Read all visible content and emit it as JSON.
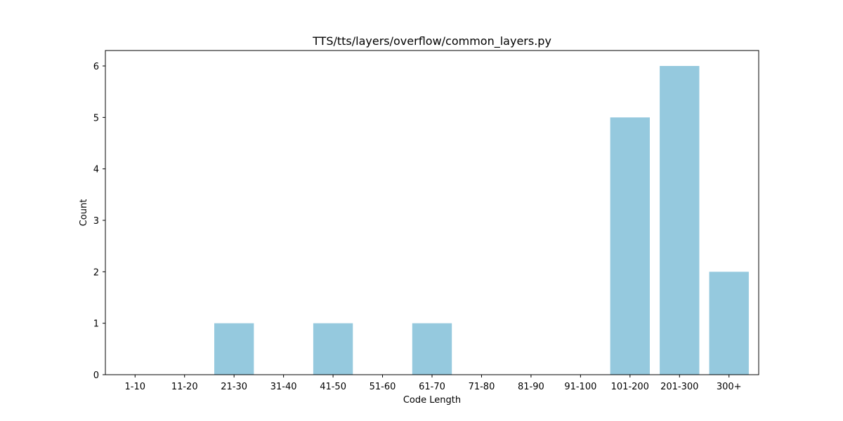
{
  "chart_data": {
    "type": "bar",
    "title": "TTS/tts/layers/overflow/common_layers.py",
    "xlabel": "Code Length",
    "ylabel": "Count",
    "categories": [
      "1-10",
      "11-20",
      "21-30",
      "31-40",
      "41-50",
      "51-60",
      "61-70",
      "71-80",
      "81-90",
      "91-100",
      "101-200",
      "201-300",
      "300+"
    ],
    "values": [
      0,
      0,
      1,
      0,
      1,
      0,
      1,
      0,
      0,
      0,
      5,
      6,
      2
    ],
    "ylim": [
      0,
      6.3
    ],
    "yticks": [
      0,
      1,
      2,
      3,
      4,
      5,
      6
    ],
    "bar_color": "#95c9de",
    "grid": false,
    "legend": "none"
  }
}
